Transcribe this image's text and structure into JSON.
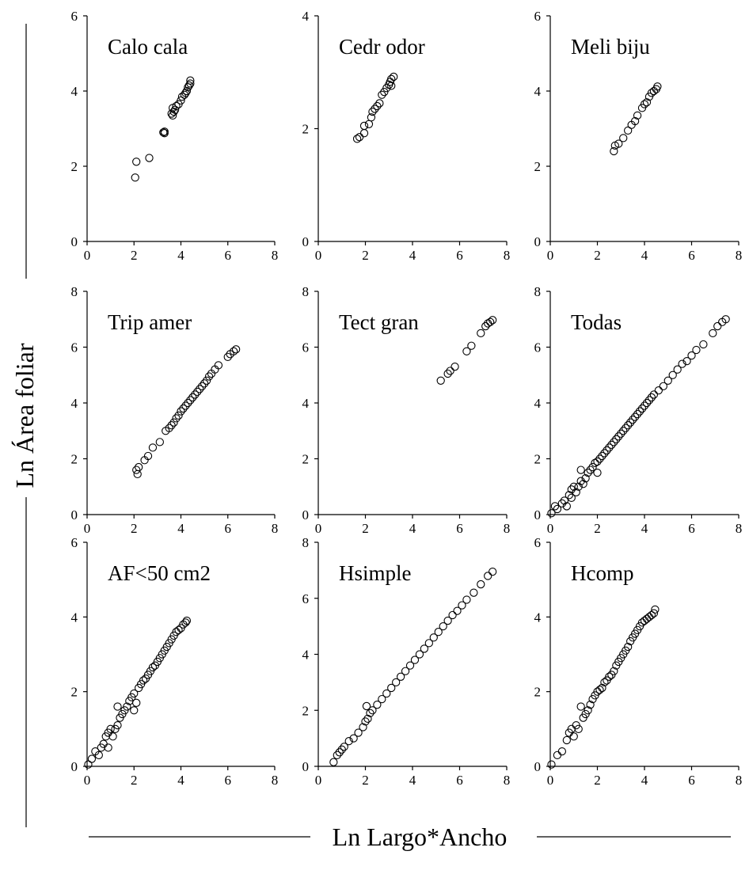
{
  "figure": {
    "xlabel": "Ln Largo*Ancho",
    "ylabel": "Ln Área foliar"
  },
  "chart_data": [
    {
      "type": "scatter",
      "title": "Calo cala",
      "xlim": [
        0,
        8
      ],
      "ylim": [
        0,
        6
      ],
      "xticks": [
        "0",
        "2",
        "4",
        "6",
        "8"
      ],
      "yticks": [
        "0",
        "2",
        "4",
        "6"
      ],
      "points": [
        [
          2.05,
          1.7
        ],
        [
          2.1,
          2.12
        ],
        [
          2.65,
          2.22
        ],
        [
          3.25,
          2.9
        ],
        [
          3.3,
          2.92
        ],
        [
          3.3,
          2.88
        ],
        [
          3.6,
          3.4
        ],
        [
          3.65,
          3.35
        ],
        [
          3.7,
          3.45
        ],
        [
          3.65,
          3.55
        ],
        [
          3.75,
          3.5
        ],
        [
          3.8,
          3.6
        ],
        [
          3.9,
          3.65
        ],
        [
          4.0,
          3.75
        ],
        [
          4.05,
          3.85
        ],
        [
          4.15,
          3.9
        ],
        [
          4.2,
          3.95
        ],
        [
          4.25,
          4.0
        ],
        [
          4.3,
          4.1
        ],
        [
          4.35,
          4.15
        ],
        [
          4.4,
          4.2
        ],
        [
          4.4,
          4.28
        ]
      ]
    },
    {
      "type": "scatter",
      "title": "Cedr odor",
      "xlim": [
        0,
        8
      ],
      "ylim": [
        0,
        4
      ],
      "xticks": [
        "0",
        "2",
        "4",
        "6",
        "8"
      ],
      "yticks": [
        "0",
        "2",
        "4"
      ],
      "points": [
        [
          1.65,
          1.82
        ],
        [
          1.75,
          1.85
        ],
        [
          1.95,
          1.92
        ],
        [
          1.95,
          2.05
        ],
        [
          2.15,
          2.08
        ],
        [
          2.25,
          2.2
        ],
        [
          2.3,
          2.3
        ],
        [
          2.4,
          2.35
        ],
        [
          2.5,
          2.4
        ],
        [
          2.6,
          2.45
        ],
        [
          2.7,
          2.6
        ],
        [
          2.8,
          2.65
        ],
        [
          2.9,
          2.72
        ],
        [
          3.0,
          2.78
        ],
        [
          3.05,
          2.83
        ],
        [
          3.1,
          2.88
        ],
        [
          3.2,
          2.92
        ],
        [
          3.1,
          2.76
        ]
      ]
    },
    {
      "type": "scatter",
      "title": "Meli biju",
      "xlim": [
        0,
        8
      ],
      "ylim": [
        0,
        6
      ],
      "xticks": [
        "0",
        "2",
        "4",
        "6",
        "8"
      ],
      "yticks": [
        "0",
        "2",
        "4",
        "6"
      ],
      "points": [
        [
          2.7,
          2.4
        ],
        [
          2.75,
          2.55
        ],
        [
          2.9,
          2.6
        ],
        [
          3.1,
          2.75
        ],
        [
          3.3,
          2.95
        ],
        [
          3.45,
          3.1
        ],
        [
          3.6,
          3.2
        ],
        [
          3.7,
          3.35
        ],
        [
          3.9,
          3.55
        ],
        [
          4.0,
          3.65
        ],
        [
          4.1,
          3.7
        ],
        [
          4.2,
          3.85
        ],
        [
          4.3,
          3.95
        ],
        [
          4.4,
          4.0
        ],
        [
          4.5,
          4.05
        ],
        [
          4.55,
          4.12
        ]
      ]
    },
    {
      "type": "scatter",
      "title": "Trip amer",
      "xlim": [
        0,
        8
      ],
      "ylim": [
        0,
        8
      ],
      "xticks": [
        "0",
        "2",
        "4",
        "6",
        "8"
      ],
      "yticks": [
        "0",
        "2",
        "4",
        "6",
        "8"
      ],
      "points": [
        [
          2.1,
          1.6
        ],
        [
          2.15,
          1.45
        ],
        [
          2.2,
          1.7
        ],
        [
          2.45,
          1.95
        ],
        [
          2.6,
          2.1
        ],
        [
          2.8,
          2.4
        ],
        [
          3.1,
          2.6
        ],
        [
          3.35,
          3.0
        ],
        [
          3.5,
          3.1
        ],
        [
          3.6,
          3.2
        ],
        [
          3.7,
          3.3
        ],
        [
          3.8,
          3.45
        ],
        [
          3.9,
          3.55
        ],
        [
          4.0,
          3.7
        ],
        [
          4.1,
          3.8
        ],
        [
          4.2,
          3.9
        ],
        [
          4.3,
          4.0
        ],
        [
          4.4,
          4.1
        ],
        [
          4.5,
          4.2
        ],
        [
          4.6,
          4.3
        ],
        [
          4.7,
          4.4
        ],
        [
          4.8,
          4.5
        ],
        [
          4.9,
          4.6
        ],
        [
          5.0,
          4.7
        ],
        [
          5.1,
          4.8
        ],
        [
          5.2,
          4.95
        ],
        [
          5.3,
          5.05
        ],
        [
          5.45,
          5.2
        ],
        [
          5.6,
          5.35
        ],
        [
          6.0,
          5.65
        ],
        [
          6.1,
          5.75
        ],
        [
          6.25,
          5.85
        ],
        [
          6.35,
          5.92
        ]
      ]
    },
    {
      "type": "scatter",
      "title": "Tect gran",
      "xlim": [
        0,
        8
      ],
      "ylim": [
        0,
        8
      ],
      "xticks": [
        "0",
        "2",
        "4",
        "6",
        "8"
      ],
      "yticks": [
        "0",
        "2",
        "4",
        "6",
        "8"
      ],
      "points": [
        [
          5.2,
          4.8
        ],
        [
          5.5,
          5.05
        ],
        [
          5.6,
          5.15
        ],
        [
          5.8,
          5.3
        ],
        [
          6.3,
          5.85
        ],
        [
          6.5,
          6.05
        ],
        [
          6.9,
          6.5
        ],
        [
          7.1,
          6.75
        ],
        [
          7.2,
          6.85
        ],
        [
          7.3,
          6.9
        ],
        [
          7.4,
          6.97
        ]
      ]
    },
    {
      "type": "scatter",
      "title": "Todas",
      "xlim": [
        0,
        8
      ],
      "ylim": [
        0,
        8
      ],
      "xticks": [
        "0",
        "2",
        "4",
        "6",
        "8"
      ],
      "yticks": [
        "0",
        "2",
        "4",
        "6",
        "8"
      ],
      "points": [
        [
          0.05,
          0.05
        ],
        [
          0.2,
          0.3
        ],
        [
          0.3,
          0.2
        ],
        [
          0.5,
          0.4
        ],
        [
          0.6,
          0.5
        ],
        [
          0.7,
          0.3
        ],
        [
          0.8,
          0.7
        ],
        [
          0.9,
          0.9
        ],
        [
          1.0,
          1.0
        ],
        [
          0.9,
          0.6
        ],
        [
          1.1,
          0.8
        ],
        [
          1.2,
          1.0
        ],
        [
          1.3,
          1.2
        ],
        [
          1.4,
          1.1
        ],
        [
          1.5,
          1.3
        ],
        [
          1.6,
          1.5
        ],
        [
          1.3,
          1.6
        ],
        [
          1.7,
          1.6
        ],
        [
          1.8,
          1.7
        ],
        [
          1.9,
          1.85
        ],
        [
          2.0,
          1.9
        ],
        [
          2.0,
          1.5
        ],
        [
          2.1,
          2.0
        ],
        [
          2.2,
          2.1
        ],
        [
          2.3,
          2.2
        ],
        [
          2.4,
          2.3
        ],
        [
          2.5,
          2.4
        ],
        [
          2.6,
          2.5
        ],
        [
          2.7,
          2.6
        ],
        [
          2.8,
          2.7
        ],
        [
          2.9,
          2.8
        ],
        [
          3.0,
          2.9
        ],
        [
          3.1,
          3.0
        ],
        [
          3.2,
          3.1
        ],
        [
          3.3,
          3.2
        ],
        [
          3.4,
          3.3
        ],
        [
          3.5,
          3.4
        ],
        [
          3.6,
          3.5
        ],
        [
          3.7,
          3.6
        ],
        [
          3.8,
          3.7
        ],
        [
          3.9,
          3.8
        ],
        [
          4.0,
          3.9
        ],
        [
          4.1,
          4.0
        ],
        [
          4.2,
          4.1
        ],
        [
          4.3,
          4.2
        ],
        [
          4.4,
          4.3
        ],
        [
          4.6,
          4.45
        ],
        [
          4.8,
          4.6
        ],
        [
          5.0,
          4.8
        ],
        [
          5.2,
          5.0
        ],
        [
          5.4,
          5.2
        ],
        [
          5.6,
          5.4
        ],
        [
          5.8,
          5.5
        ],
        [
          6.0,
          5.7
        ],
        [
          6.2,
          5.9
        ],
        [
          6.5,
          6.1
        ],
        [
          6.9,
          6.5
        ],
        [
          7.1,
          6.75
        ],
        [
          7.3,
          6.9
        ],
        [
          7.45,
          7.0
        ]
      ]
    },
    {
      "type": "scatter",
      "title": "AF<50 cm2",
      "xlim": [
        0,
        8
      ],
      "ylim": [
        0,
        6
      ],
      "xticks": [
        "0",
        "2",
        "4",
        "6",
        "8"
      ],
      "yticks": [
        "0",
        "2",
        "4",
        "6"
      ],
      "points": [
        [
          0.05,
          0.05
        ],
        [
          0.2,
          0.2
        ],
        [
          0.35,
          0.4
        ],
        [
          0.5,
          0.3
        ],
        [
          0.6,
          0.5
        ],
        [
          0.7,
          0.6
        ],
        [
          0.8,
          0.8
        ],
        [
          0.9,
          0.9
        ],
        [
          1.0,
          1.0
        ],
        [
          0.9,
          0.5
        ],
        [
          1.1,
          0.8
        ],
        [
          1.2,
          1.0
        ],
        [
          1.3,
          1.1
        ],
        [
          1.4,
          1.3
        ],
        [
          1.3,
          1.6
        ],
        [
          1.5,
          1.4
        ],
        [
          1.6,
          1.5
        ],
        [
          1.7,
          1.6
        ],
        [
          1.8,
          1.75
        ],
        [
          1.9,
          1.85
        ],
        [
          2.0,
          1.95
        ],
        [
          2.0,
          1.5
        ],
        [
          2.1,
          1.7
        ],
        [
          2.2,
          2.1
        ],
        [
          2.3,
          2.2
        ],
        [
          2.4,
          2.3
        ],
        [
          2.5,
          2.35
        ],
        [
          2.6,
          2.45
        ],
        [
          2.7,
          2.55
        ],
        [
          2.8,
          2.65
        ],
        [
          2.9,
          2.7
        ],
        [
          3.0,
          2.8
        ],
        [
          3.1,
          2.9
        ],
        [
          3.2,
          3.0
        ],
        [
          3.3,
          3.1
        ],
        [
          3.4,
          3.2
        ],
        [
          3.5,
          3.3
        ],
        [
          3.6,
          3.4
        ],
        [
          3.7,
          3.5
        ],
        [
          3.8,
          3.6
        ],
        [
          3.9,
          3.65
        ],
        [
          4.0,
          3.7
        ],
        [
          4.1,
          3.8
        ],
        [
          4.2,
          3.85
        ],
        [
          4.25,
          3.9
        ]
      ]
    },
    {
      "type": "scatter",
      "title": "Hsimple",
      "xlim": [
        0,
        8
      ],
      "ylim": [
        0,
        8
      ],
      "xticks": [
        "0",
        "2",
        "4",
        "6",
        "8"
      ],
      "yticks": [
        "0",
        "2",
        "4",
        "6",
        "8"
      ],
      "points": [
        [
          0.65,
          0.15
        ],
        [
          0.8,
          0.4
        ],
        [
          0.9,
          0.5
        ],
        [
          1.0,
          0.6
        ],
        [
          1.1,
          0.7
        ],
        [
          1.3,
          0.9
        ],
        [
          1.5,
          1.0
        ],
        [
          1.7,
          1.2
        ],
        [
          1.9,
          1.4
        ],
        [
          2.0,
          1.6
        ],
        [
          2.05,
          2.15
        ],
        [
          2.1,
          1.7
        ],
        [
          2.2,
          1.9
        ],
        [
          2.3,
          2.0
        ],
        [
          2.5,
          2.2
        ],
        [
          2.7,
          2.4
        ],
        [
          2.9,
          2.6
        ],
        [
          3.1,
          2.8
        ],
        [
          3.3,
          3.0
        ],
        [
          3.5,
          3.2
        ],
        [
          3.7,
          3.4
        ],
        [
          3.9,
          3.6
        ],
        [
          4.1,
          3.8
        ],
        [
          4.3,
          4.0
        ],
        [
          4.5,
          4.2
        ],
        [
          4.7,
          4.4
        ],
        [
          4.9,
          4.6
        ],
        [
          5.1,
          4.8
        ],
        [
          5.3,
          5.0
        ],
        [
          5.5,
          5.2
        ],
        [
          5.7,
          5.4
        ],
        [
          5.9,
          5.55
        ],
        [
          6.1,
          5.75
        ],
        [
          6.3,
          5.95
        ],
        [
          6.6,
          6.2
        ],
        [
          6.9,
          6.5
        ],
        [
          7.2,
          6.8
        ],
        [
          7.4,
          6.95
        ]
      ]
    },
    {
      "type": "scatter",
      "title": "Hcomp",
      "xlim": [
        0,
        8
      ],
      "ylim": [
        0,
        6
      ],
      "xticks": [
        "0",
        "2",
        "4",
        "6",
        "8"
      ],
      "yticks": [
        "0",
        "2",
        "4",
        "6"
      ],
      "points": [
        [
          0.05,
          0.05
        ],
        [
          0.3,
          0.3
        ],
        [
          0.5,
          0.4
        ],
        [
          0.7,
          0.7
        ],
        [
          0.8,
          0.9
        ],
        [
          0.9,
          1.0
        ],
        [
          1.0,
          0.8
        ],
        [
          1.1,
          1.1
        ],
        [
          1.2,
          1.0
        ],
        [
          1.3,
          1.6
        ],
        [
          1.4,
          1.3
        ],
        [
          1.5,
          1.4
        ],
        [
          1.6,
          1.5
        ],
        [
          1.7,
          1.65
        ],
        [
          1.8,
          1.8
        ],
        [
          1.9,
          1.9
        ],
        [
          2.0,
          2.0
        ],
        [
          2.1,
          2.05
        ],
        [
          2.2,
          2.1
        ],
        [
          2.3,
          2.25
        ],
        [
          2.4,
          2.3
        ],
        [
          2.5,
          2.4
        ],
        [
          2.6,
          2.45
        ],
        [
          2.7,
          2.55
        ],
        [
          2.8,
          2.7
        ],
        [
          2.9,
          2.8
        ],
        [
          3.0,
          2.9
        ],
        [
          3.1,
          3.0
        ],
        [
          3.2,
          3.1
        ],
        [
          3.3,
          3.2
        ],
        [
          3.4,
          3.35
        ],
        [
          3.5,
          3.45
        ],
        [
          3.6,
          3.55
        ],
        [
          3.7,
          3.65
        ],
        [
          3.8,
          3.75
        ],
        [
          3.9,
          3.85
        ],
        [
          4.0,
          3.9
        ],
        [
          4.1,
          3.95
        ],
        [
          4.2,
          4.0
        ],
        [
          4.3,
          4.05
        ],
        [
          4.4,
          4.1
        ],
        [
          4.45,
          4.2
        ]
      ]
    }
  ]
}
